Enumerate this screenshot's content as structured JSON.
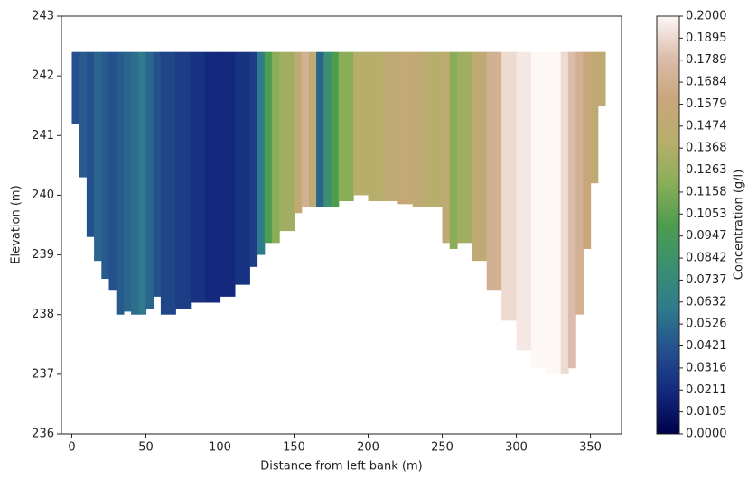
{
  "chart_data": {
    "type": "section",
    "x_label": "Distance from left bank (m)",
    "y_label": "Elevation (m)",
    "colorbar_label": "Concentration (g/l)",
    "xlim": [
      -7,
      371
    ],
    "ylim": [
      236,
      243
    ],
    "xticks": [
      0,
      50,
      100,
      150,
      200,
      250,
      300,
      350
    ],
    "yticks": [
      236,
      237,
      238,
      239,
      240,
      241,
      242,
      243
    ],
    "water_surface": 242.4,
    "x": [
      0,
      5,
      10,
      15,
      20,
      25,
      30,
      35,
      40,
      45,
      50,
      55,
      60,
      70,
      80,
      90,
      100,
      110,
      120,
      125,
      130,
      135,
      140,
      150,
      155,
      160,
      165,
      170,
      175,
      180,
      190,
      200,
      210,
      220,
      230,
      240,
      250,
      255,
      260,
      270,
      280,
      290,
      300,
      310,
      320,
      330,
      335,
      340,
      345,
      350,
      355
    ],
    "bed_elevation": [
      241.2,
      240.3,
      239.3,
      238.9,
      238.6,
      238.4,
      238.0,
      238.05,
      238.0,
      238.0,
      238.1,
      238.3,
      238.0,
      238.1,
      238.2,
      238.2,
      238.3,
      238.5,
      238.8,
      239.0,
      239.2,
      239.2,
      239.4,
      239.7,
      239.8,
      239.8,
      239.8,
      239.8,
      239.8,
      239.9,
      240.0,
      239.9,
      239.9,
      239.85,
      239.8,
      239.8,
      239.2,
      239.1,
      239.2,
      238.9,
      238.4,
      237.9,
      237.4,
      237.1,
      237.0,
      237.0,
      237.1,
      238.0,
      239.1,
      240.2,
      241.5
    ],
    "concentration": [
      0.04,
      0.045,
      0.04,
      0.05,
      0.045,
      0.04,
      0.045,
      0.05,
      0.055,
      0.06,
      0.05,
      0.04,
      0.035,
      0.03,
      0.025,
      0.02,
      0.02,
      0.025,
      0.03,
      0.06,
      0.1,
      0.12,
      0.13,
      0.15,
      0.17,
      0.15,
      0.05,
      0.08,
      0.1,
      0.12,
      0.14,
      0.14,
      0.15,
      0.155,
      0.15,
      0.14,
      0.15,
      0.12,
      0.13,
      0.15,
      0.17,
      0.19,
      0.195,
      0.2,
      0.2,
      0.19,
      0.18,
      0.17,
      0.16,
      0.15,
      0.15
    ],
    "clim": [
      0,
      0.2
    ],
    "colormap": [
      "#00004a",
      "#14287e",
      "#24508e",
      "#2f7a8c",
      "#3a9070",
      "#4e9c4e",
      "#8aae58",
      "#b8ae6c",
      "#c8a67a",
      "#dcbcac",
      "#fdf7f6"
    ],
    "cticks": [
      {
        "value": 0,
        "label": "0.0000"
      },
      {
        "value": 0.010526,
        "label": "0.0105"
      },
      {
        "value": 0.021053,
        "label": "0.0211"
      },
      {
        "value": 0.031579,
        "label": "0.0316"
      },
      {
        "value": 0.042105,
        "label": "0.0421"
      },
      {
        "value": 0.052632,
        "label": "0.0526"
      },
      {
        "value": 0.063158,
        "label": "0.0632"
      },
      {
        "value": 0.073684,
        "label": "0.0737"
      },
      {
        "value": 0.084211,
        "label": "0.0842"
      },
      {
        "value": 0.094737,
        "label": "0.0947"
      },
      {
        "value": 0.105263,
        "label": "0.1053"
      },
      {
        "value": 0.115789,
        "label": "0.1158"
      },
      {
        "value": 0.126316,
        "label": "0.1263"
      },
      {
        "value": 0.136842,
        "label": "0.1368"
      },
      {
        "value": 0.147368,
        "label": "0.1474"
      },
      {
        "value": 0.157895,
        "label": "0.1579"
      },
      {
        "value": 0.168421,
        "label": "0.1684"
      },
      {
        "value": 0.178947,
        "label": "0.1789"
      },
      {
        "value": 0.189474,
        "label": "0.1895"
      },
      {
        "value": 0.2,
        "label": "0.2000"
      }
    ]
  }
}
